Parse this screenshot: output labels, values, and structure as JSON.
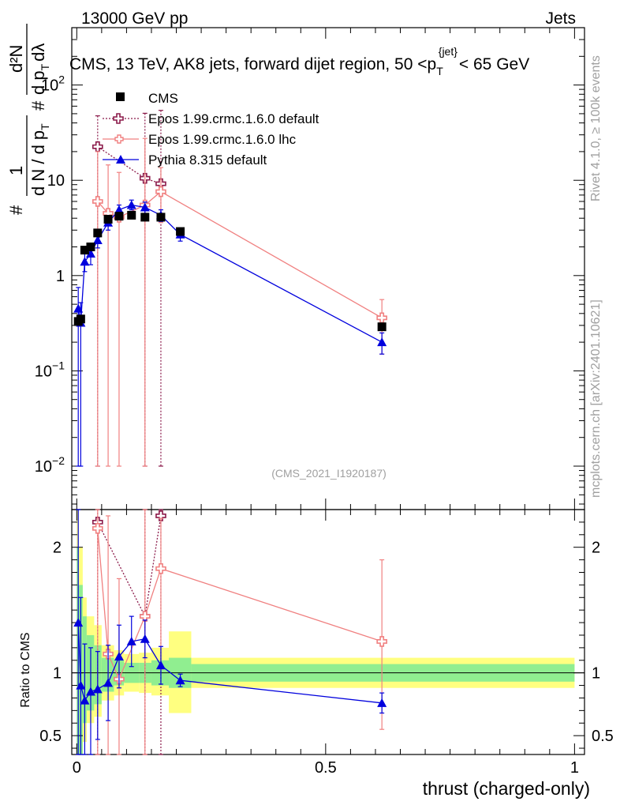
{
  "header": {
    "energy": "13000 GeV pp",
    "category": "Jets"
  },
  "side_texts": {
    "rivet": "Rivet 4.1.0, ≥ 100k events",
    "mcplots": "mcplots.cern.ch [arXiv:2401.10621]"
  },
  "watermark": "(CMS_2021_I1920187)",
  "title": {
    "prefix": "CMS, 13 TeV, AK8 jets, forward dijet region, 50 <",
    "p": "p",
    "sub": "T",
    "sup": "{jet}",
    "suffix": "< 65 GeV"
  },
  "ylabel_main": {
    "hash1": "#",
    "one": "1",
    "dN": "d N / d p",
    "dN_sub": "T",
    "hash2": "#",
    "d2N": "d²N",
    "den": "d p",
    "den_sub": "T",
    "dlambda": "dλ"
  },
  "ylabel_ratio": "Ratio to CMS",
  "xlabel": "thrust (charged-only)",
  "legend": [
    {
      "name": "CMS",
      "color": "#000000"
    },
    {
      "name": "Epos 1.99.crmc.1.6.0 default",
      "color": "#8b1a4a"
    },
    {
      "name": "Epos 1.99.crmc.1.6.0 lhc",
      "color": "#f08080"
    },
    {
      "name": "Pythia 8.315 default",
      "color": "#0000dd"
    }
  ],
  "chart_data": {
    "type": "line",
    "x_range": [
      -0.01,
      1.02
    ],
    "y_range_log": [
      0.0035,
      400
    ],
    "ratio_range": [
      0.35,
      2.3
    ],
    "x_ticks": [
      {
        "v": 0,
        "label": "0"
      },
      {
        "v": 0.5,
        "label": "0.5"
      },
      {
        "v": 1,
        "label": "1"
      }
    ],
    "y_ticks_main": [
      {
        "v": 100,
        "label": "10",
        "exp": "2"
      },
      {
        "v": 10,
        "label": "10",
        "exp": ""
      },
      {
        "v": 1,
        "label": "1",
        "exp": ""
      },
      {
        "v": 0.1,
        "label": "10",
        "exp": "−1"
      },
      {
        "v": 0.01,
        "label": "10",
        "exp": "−2"
      }
    ],
    "y_ticks_ratio": [
      {
        "v": 2,
        "label": "2"
      },
      {
        "v": 1,
        "label": "1"
      },
      {
        "v": 0.5,
        "label": "0.5"
      }
    ],
    "cms": {
      "name": "CMS",
      "x": [
        0.003,
        0.008,
        0.016,
        0.028,
        0.042,
        0.063,
        0.085,
        0.11,
        0.137,
        0.169,
        0.208,
        0.613
      ],
      "y": [
        0.33,
        0.35,
        1.85,
        2.0,
        2.8,
        3.9,
        4.2,
        4.3,
        4.1,
        4.1,
        2.9,
        0.29
      ]
    },
    "uncertainty_bands": {
      "edges": [
        0.0,
        0.004,
        0.012,
        0.02,
        0.035,
        0.05,
        0.075,
        0.095,
        0.125,
        0.15,
        0.185,
        0.23,
        1.0
      ],
      "green": [
        [
          0.01,
          2.0
        ],
        [
          0.3,
          1.7
        ],
        [
          0.6,
          1.45
        ],
        [
          0.7,
          1.3
        ],
        [
          0.75,
          1.22
        ],
        [
          0.85,
          1.12
        ],
        [
          0.9,
          1.1
        ],
        [
          0.92,
          1.08
        ],
        [
          0.92,
          1.08
        ],
        [
          0.9,
          1.1
        ],
        [
          0.88,
          1.12
        ],
        [
          0.93,
          1.07
        ]
      ],
      "yellow": [
        [
          0.01,
          2.3
        ],
        [
          0.2,
          2.0
        ],
        [
          0.45,
          1.6
        ],
        [
          0.6,
          1.45
        ],
        [
          0.65,
          1.38
        ],
        [
          0.78,
          1.22
        ],
        [
          0.82,
          1.18
        ],
        [
          0.85,
          1.15
        ],
        [
          0.84,
          1.16
        ],
        [
          0.82,
          1.2
        ],
        [
          0.68,
          1.33
        ],
        [
          0.88,
          1.12
        ]
      ]
    },
    "series": [
      {
        "name": "Epos 1.99.crmc.1.6.0 default",
        "color": "#8b1a4a",
        "dashed": true,
        "marker": "cross-open",
        "x": [
          0.042,
          0.137,
          0.169
        ],
        "y": [
          22.5,
          10.5,
          9.2
        ],
        "err_lo": [
          22.49,
          10.49,
          9.19
        ],
        "err_hi": [
          25,
          40,
          45
        ],
        "ratio": [
          2.2,
          1.45,
          2.25
        ],
        "ratio_err_lo": [
          1.85,
          1.1,
          1.9
        ],
        "ratio_err_hi": [
          0.2,
          0.9,
          0.5
        ]
      },
      {
        "name": "Epos 1.99.crmc.1.6.0 lhc",
        "color": "#f08080",
        "dashed": false,
        "marker": "cross-open",
        "x": [
          0.042,
          0.063,
          0.085,
          0.137,
          0.169,
          0.613
        ],
        "y": [
          6.0,
          4.5,
          4.1,
          5.5,
          7.6,
          0.36
        ],
        "err_lo": [
          5.99,
          4.49,
          4.09,
          5.49,
          4.0,
          0.21
        ],
        "err_hi": [
          14,
          10,
          8,
          22,
          6,
          0.2
        ],
        "ratio": [
          2.15,
          1.15,
          0.95,
          1.45,
          1.83,
          1.25
        ],
        "ratio_err_lo": [
          1.8,
          0.8,
          0.6,
          1.1,
          0.8,
          0.7
        ],
        "ratio_err_hi": [
          0.2,
          1.1,
          0.8,
          0.9,
          0.4,
          0.65
        ]
      },
      {
        "name": "Pythia 8.315 default",
        "color": "#0000dd",
        "dashed": false,
        "marker": "triangle",
        "x": [
          0.003,
          0.008,
          0.016,
          0.028,
          0.042,
          0.063,
          0.085,
          0.11,
          0.137,
          0.169,
          0.208,
          0.613
        ],
        "y": [
          0.45,
          0.32,
          1.4,
          1.7,
          2.35,
          3.6,
          4.9,
          5.5,
          5.2,
          4.3,
          2.7,
          0.2
        ],
        "err_lo": [
          0.44,
          0.31,
          0.3,
          0.4,
          0.4,
          0.6,
          0.6,
          0.6,
          0.7,
          0.6,
          0.4,
          0.05
        ],
        "err_hi": [
          0.3,
          0.2,
          0.3,
          0.4,
          0.4,
          0.6,
          0.6,
          0.7,
          0.7,
          0.6,
          0.4,
          0.05
        ],
        "ratio": [
          1.4,
          0.9,
          0.78,
          0.85,
          0.87,
          0.92,
          1.13,
          1.25,
          1.27,
          1.06,
          0.94,
          0.76
        ],
        "ratio_err_lo": [
          1.2,
          0.8,
          0.5,
          0.5,
          0.4,
          0.3,
          0.25,
          0.2,
          0.15,
          0.15,
          0.05,
          0.08
        ],
        "ratio_err_hi": [
          1.0,
          0.7,
          0.45,
          0.35,
          0.3,
          0.3,
          0.25,
          0.2,
          0.15,
          0.15,
          0.05,
          0.08
        ]
      }
    ]
  }
}
